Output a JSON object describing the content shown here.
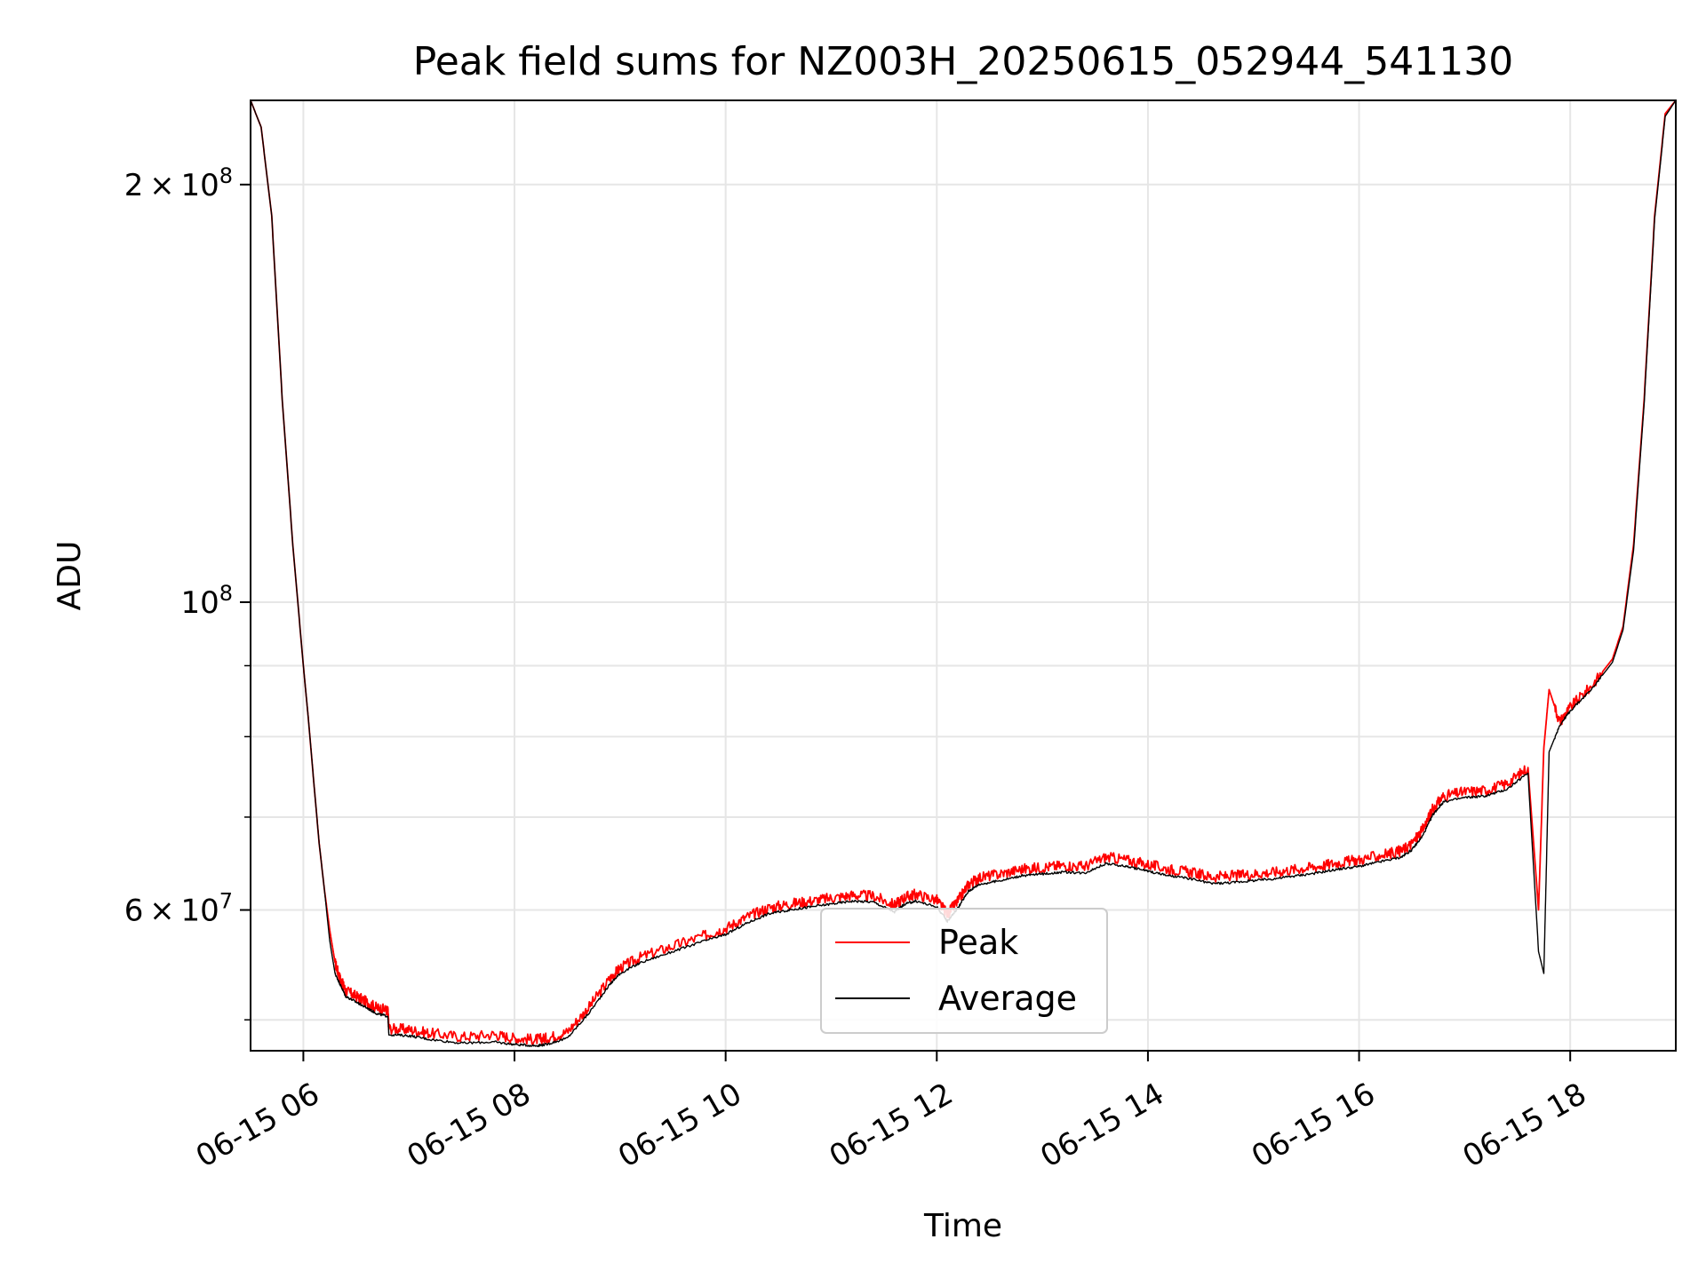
{
  "chart_data": {
    "type": "line",
    "title": "Peak field sums for NZ003H_20250615_052944_541130",
    "xlabel": "Time",
    "ylabel": "ADU",
    "x_unit": "hours (06-15)",
    "xlim": [
      5.5,
      19.0
    ],
    "ylim": [
      47500000.0,
      230000000.0
    ],
    "yscale": "log",
    "grid": true,
    "legend_position": "lower-center",
    "x_ticks": [
      {
        "value": 6,
        "label": "06-15 06"
      },
      {
        "value": 8,
        "label": "06-15 08"
      },
      {
        "value": 10,
        "label": "06-15 10"
      },
      {
        "value": 12,
        "label": "06-15 12"
      },
      {
        "value": 14,
        "label": "06-15 14"
      },
      {
        "value": 16,
        "label": "06-15 16"
      },
      {
        "value": 18,
        "label": "06-15 18"
      }
    ],
    "y_ticks": [
      {
        "value": 200000000,
        "mant": "2",
        "exp": "8"
      },
      {
        "value": 100000000,
        "mant": "",
        "exp": "8"
      },
      {
        "value": 60000000,
        "mant": "6",
        "exp": "7"
      }
    ],
    "y_minor_ticks": [
      50000000,
      70000000,
      80000000,
      90000000
    ],
    "x": [
      5.5,
      5.6,
      5.7,
      5.8,
      5.9,
      6.0,
      6.05,
      6.1,
      6.15,
      6.2,
      6.25,
      6.3,
      6.35,
      6.4,
      6.5,
      6.6,
      6.7,
      6.8,
      6.81,
      7.0,
      7.2,
      7.5,
      7.8,
      8.0,
      8.2,
      8.3,
      8.5,
      8.7,
      8.9,
      9.0,
      9.2,
      9.5,
      9.8,
      10.0,
      10.2,
      10.4,
      10.6,
      10.8,
      11.0,
      11.2,
      11.4,
      11.6,
      11.7,
      11.8,
      12.0,
      12.1,
      12.2,
      12.3,
      12.4,
      12.6,
      12.8,
      13.0,
      13.2,
      13.4,
      13.6,
      13.8,
      14.0,
      14.2,
      14.4,
      14.6,
      14.8,
      15.0,
      15.2,
      15.4,
      15.6,
      15.8,
      16.0,
      16.2,
      16.4,
      16.5,
      16.6,
      16.7,
      16.8,
      17.0,
      17.2,
      17.4,
      17.6,
      17.7,
      17.75,
      17.8,
      17.9,
      18.0,
      18.2,
      18.4,
      18.5,
      18.6,
      18.7,
      18.8,
      18.9,
      19.0
    ],
    "series": [
      {
        "name": "Peak",
        "color": "#ff0000",
        "values": [
          230000000,
          220000000,
          190000000,
          140000000,
          110000000,
          90000000,
          82000000,
          74000000,
          67000000,
          62000000,
          58000000,
          55000000,
          53500000,
          52500000,
          52000000,
          51500000,
          51000000,
          50800000,
          49300000,
          49200000,
          48900000,
          48600000,
          48800000,
          48500000,
          48400000,
          48500000,
          49000000,
          51000000,
          53500000,
          54500000,
          55500000,
          56500000,
          57500000,
          58200000,
          59300000,
          60200000,
          60600000,
          60900000,
          61200000,
          61500000,
          61400000,
          60500000,
          61300000,
          61600000,
          61000000,
          59600000,
          60900000,
          62600000,
          63300000,
          63700000,
          64200000,
          64400000,
          64600000,
          64500000,
          65500000,
          65200000,
          64700000,
          64200000,
          63900000,
          63400000,
          63500000,
          63700000,
          63900000,
          64200000,
          64500000,
          64900000,
          65200000,
          65700000,
          66200000,
          67000000,
          68500000,
          71000000,
          72500000,
          73000000,
          73200000,
          74000000,
          76000000,
          60000000,
          78500000,
          86500000,
          82000000,
          84000000,
          87000000,
          91000000,
          96000000,
          110000000,
          140000000,
          190000000,
          225000000,
          230000000
        ]
      },
      {
        "name": "Average",
        "color": "#000000",
        "values": [
          230000000,
          220000000,
          190000000,
          140000000,
          110000000,
          90000000,
          82000000,
          74000000,
          67000000,
          62000000,
          57000000,
          54000000,
          53000000,
          52000000,
          51500000,
          51000000,
          50500000,
          50300000,
          48800000,
          48700000,
          48400000,
          48100000,
          48200000,
          48000000,
          47900000,
          48000000,
          48500000,
          50500000,
          53000000,
          54000000,
          55000000,
          56000000,
          57000000,
          57600000,
          58700000,
          59600000,
          60000000,
          60300000,
          60600000,
          60900000,
          60800000,
          59800000,
          60600000,
          60900000,
          60300000,
          58900000,
          60200000,
          61900000,
          62600000,
          63000000,
          63500000,
          63700000,
          63900000,
          63800000,
          64800000,
          64500000,
          64000000,
          63500000,
          63200000,
          62700000,
          62800000,
          63000000,
          63200000,
          63500000,
          63800000,
          64200000,
          64500000,
          65000000,
          65500000,
          66300000,
          67800000,
          70300000,
          71800000,
          72300000,
          72500000,
          73300000,
          75300000,
          56000000,
          54000000,
          78000000,
          81500000,
          83500000,
          86500000,
          90500000,
          95500000,
          109000000,
          139000000,
          189000000,
          224000000,
          230000000
        ]
      }
    ]
  }
}
